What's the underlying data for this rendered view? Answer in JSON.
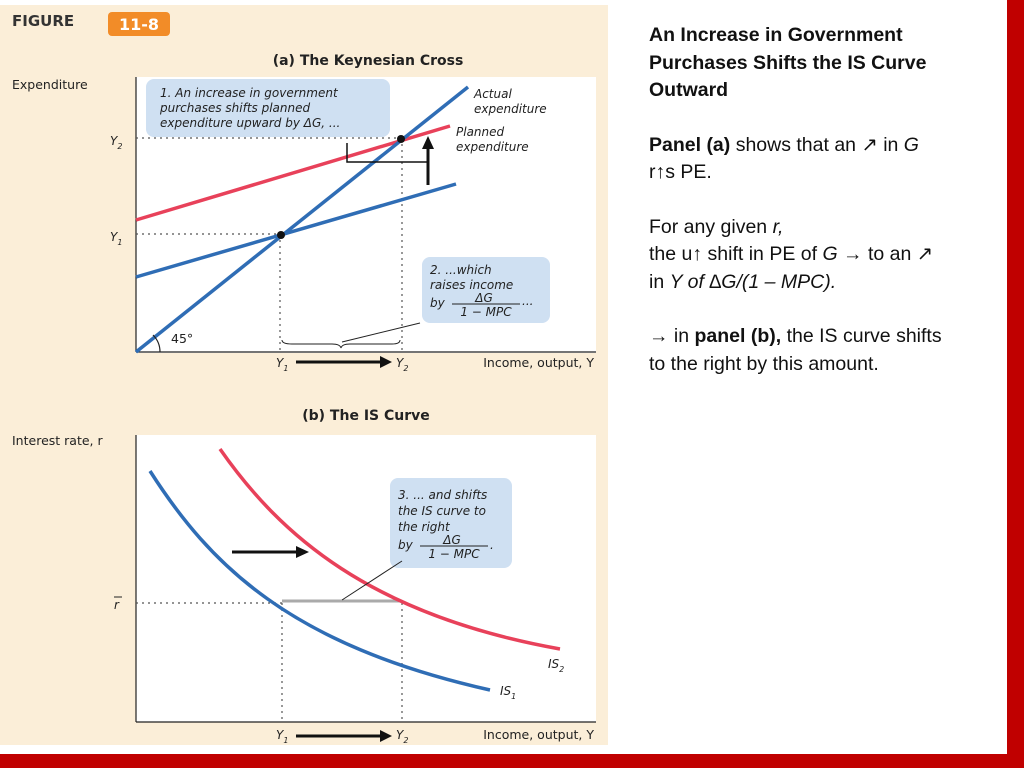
{
  "figure": {
    "label": "FIGURE",
    "number": "11-8",
    "colors": {
      "accent": "#f28c28",
      "actual": "#2f6db5",
      "planned": "#e8415a",
      "note_bg": "#cfe0f2",
      "slide_border": "#c00000"
    },
    "panel_a": {
      "title": "(a) The Keynesian Cross",
      "y_axis_label": "Expenditure",
      "x_axis_label": "Income, output, Y",
      "y_ticks": [
        "Y",
        "Y"
      ],
      "y_tick_subs": [
        "2",
        "1"
      ],
      "x_ticks": [
        "Y",
        "Y"
      ],
      "x_tick_subs": [
        "1",
        "2"
      ],
      "angle_label": "45°",
      "actual_label": [
        "Actual",
        "expenditure"
      ],
      "planned_label": [
        "Planned",
        "expenditure"
      ],
      "note1": [
        "1. An increase in government",
        "purchases shifts planned",
        "expenditure upward by ΔG, ..."
      ],
      "note2": [
        "2. ...which",
        "raises income",
        "by",
        "ΔG",
        "1 − MPC",
        "..."
      ]
    },
    "panel_b": {
      "title": "(b) The IS Curve",
      "y_axis_label": "Interest rate, r",
      "x_axis_label": "Income, output, Y",
      "r_tick": "r",
      "x_ticks": [
        "Y",
        "Y"
      ],
      "x_tick_subs": [
        "1",
        "2"
      ],
      "is1_label": "IS",
      "is1_sub": "1",
      "is2_label": "IS",
      "is2_sub": "2",
      "note3": [
        "3. ... and shifts",
        "the IS curve to",
        "the right",
        "by",
        "ΔG",
        "1 − MPC",
        "."
      ]
    }
  },
  "text": {
    "heading": [
      "An Increase in Government",
      "Purchases Shifts the IS Curve",
      "Outward"
    ],
    "p1_bold": "Panel (a)",
    "p1_rest": " shows that an ↗ in ",
    "p1_g": "G",
    "p1_line2": "r↑s PE.",
    "p2_line1a": "For any given ",
    "p2_r": "r,",
    "p2_line2a": "the u↑ shift in PE of ",
    "p2_g": "G",
    "p2_line2b": " → to an ↗",
    "p2_line3a": "in ",
    "p2_line3b": "Y of ∆G/(1 – MPC).",
    "p3_a": "→ in ",
    "p3_bold": "panel (b),",
    "p3_b": " the IS curve shifts",
    "p3_line2": "to the right by this amount."
  }
}
